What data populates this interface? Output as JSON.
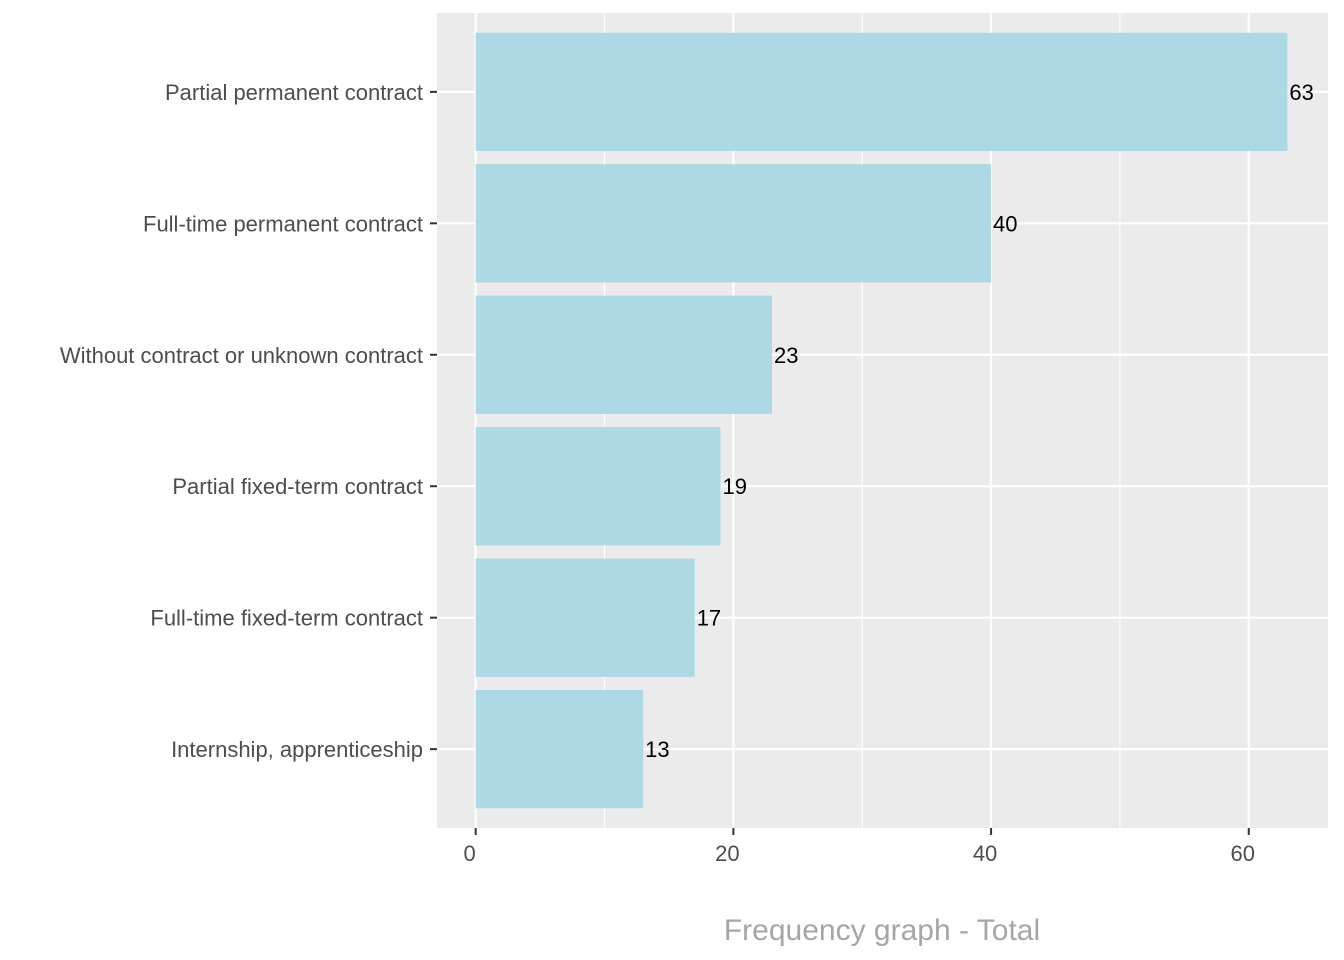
{
  "chart_data": {
    "type": "bar",
    "orientation": "horizontal",
    "categories": [
      "Partial permanent contract",
      "Full-time permanent contract",
      "Without contract or unknown contract",
      "Partial fixed-term contract",
      "Full-time fixed-term contract",
      "Internship, apprenticeship"
    ],
    "values": [
      63,
      40,
      23,
      19,
      17,
      13
    ],
    "value_labels": [
      "63",
      "40",
      "23",
      "19",
      "17",
      "13"
    ],
    "title": "",
    "xlabel": "Frequency graph - Total",
    "ylabel": "",
    "xlim": [
      -3,
      66.15
    ],
    "xticks": [
      0,
      20,
      40,
      60
    ],
    "xtick_labels": [
      "0",
      "20",
      "40",
      "60"
    ],
    "grid": true,
    "legend": "none",
    "bar_color": "#add8e6",
    "panel_color": "#ebebeb",
    "grid_color": "#ffffff"
  }
}
